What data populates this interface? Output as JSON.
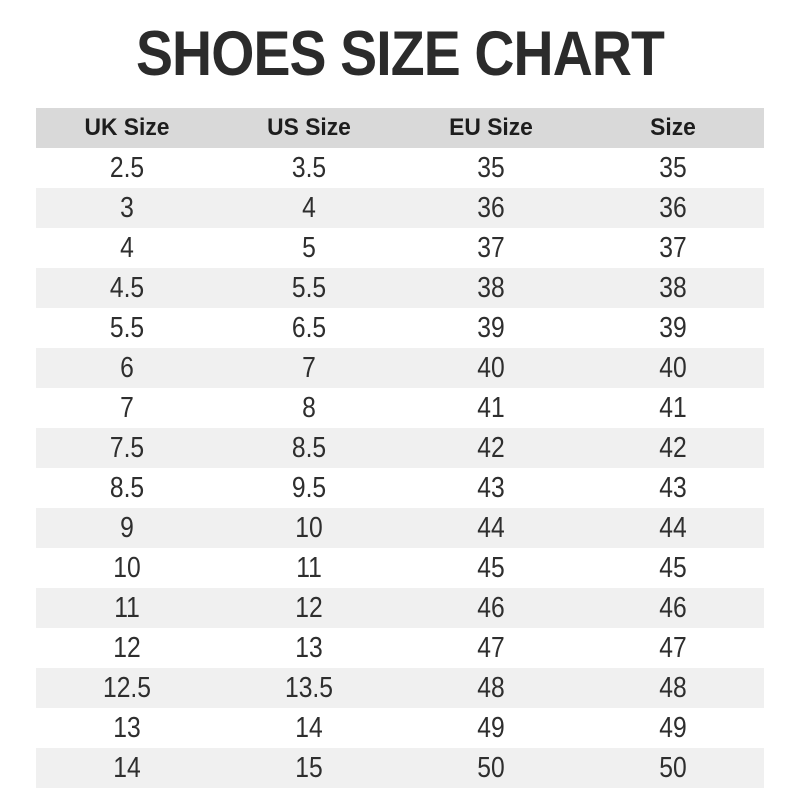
{
  "title": "SHOES SIZE CHART",
  "colors": {
    "background": "#ffffff",
    "title_text": "#2b2b2b",
    "header_background": "#d9d9d9",
    "stripe_background": "#f0f0f0",
    "cell_text": "#2e2e2e"
  },
  "chart_data": {
    "type": "table",
    "title": "SHOES SIZE CHART",
    "columns": [
      "UK Size",
      "US Size",
      "EU Size",
      "Size"
    ],
    "rows": [
      [
        "2.5",
        "3.5",
        "35",
        "35"
      ],
      [
        "3",
        "4",
        "36",
        "36"
      ],
      [
        "4",
        "5",
        "37",
        "37"
      ],
      [
        "4.5",
        "5.5",
        "38",
        "38"
      ],
      [
        "5.5",
        "6.5",
        "39",
        "39"
      ],
      [
        "6",
        "7",
        "40",
        "40"
      ],
      [
        "7",
        "8",
        "41",
        "41"
      ],
      [
        "7.5",
        "8.5",
        "42",
        "42"
      ],
      [
        "8.5",
        "9.5",
        "43",
        "43"
      ],
      [
        "9",
        "10",
        "44",
        "44"
      ],
      [
        "10",
        "11",
        "45",
        "45"
      ],
      [
        "11",
        "12",
        "46",
        "46"
      ],
      [
        "12",
        "13",
        "47",
        "47"
      ],
      [
        "12.5",
        "13.5",
        "48",
        "48"
      ],
      [
        "13",
        "14",
        "49",
        "49"
      ],
      [
        "14",
        "15",
        "50",
        "50"
      ]
    ],
    "layout": {
      "striped_rows": "even data rows shaded",
      "column_alignment": "center",
      "grid": false
    }
  }
}
